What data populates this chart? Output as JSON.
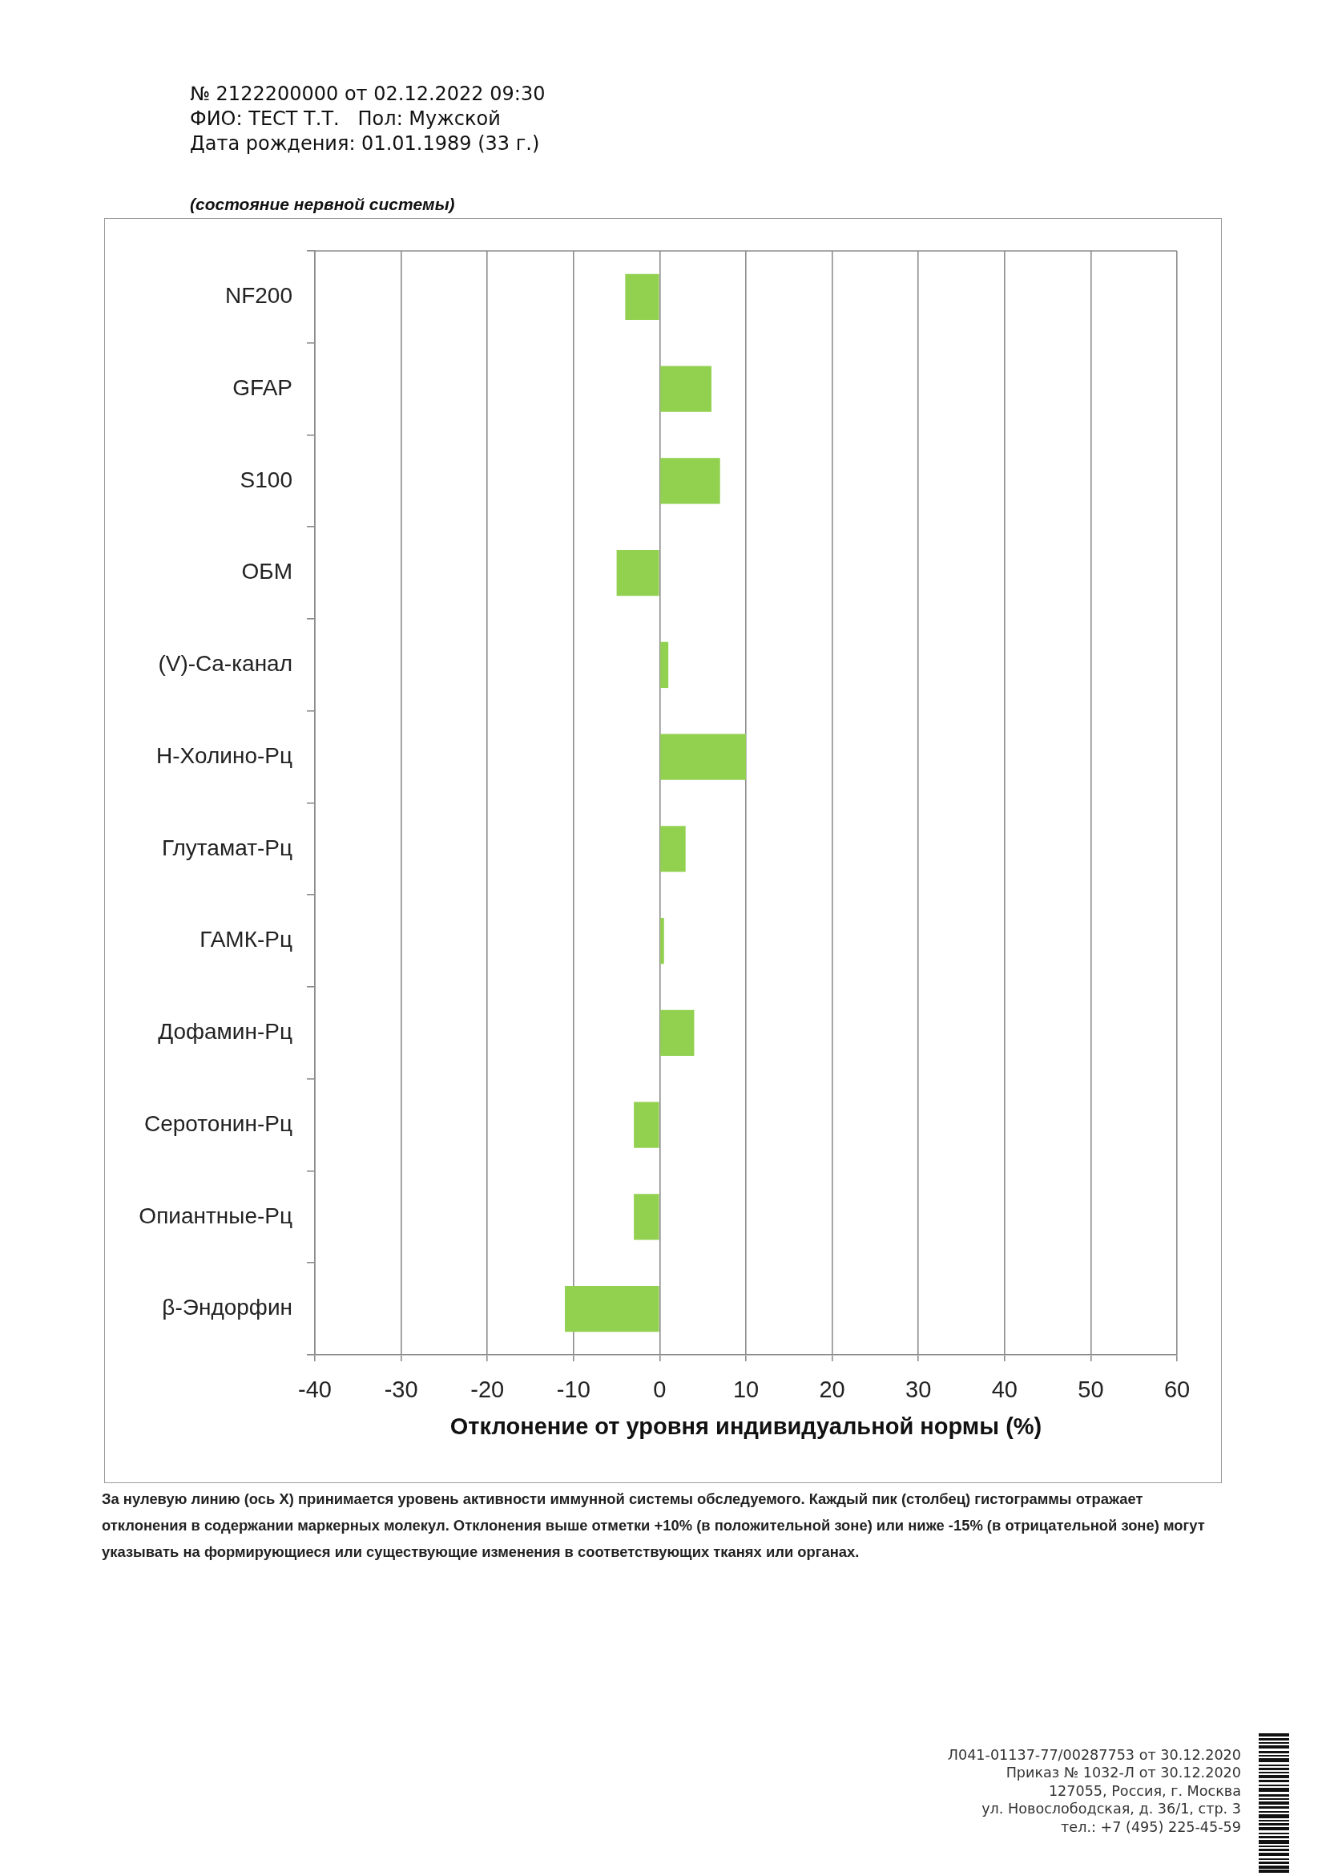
{
  "chart_data": {
    "type": "bar",
    "orientation": "horizontal",
    "title": "(состояние нервной системы)",
    "categories": [
      "NF200",
      "GFAP",
      "S100",
      "ОБМ",
      "(V)-Ca-канал",
      "Н-Холино-Рц",
      "Глутамат-Рц",
      "ГАМК-Рц",
      "Дофамин-Рц",
      "Серотонин-Рц",
      "Опиантные-Рц",
      "β-Эндорфин"
    ],
    "values": [
      -4,
      6,
      7,
      -5,
      1,
      10,
      3,
      0.5,
      4,
      -3,
      -3,
      -11
    ],
    "color": "#92d050",
    "xlim": [
      -40,
      60
    ],
    "xticks": [
      -40,
      -30,
      -20,
      -10,
      0,
      10,
      20,
      30,
      40,
      50,
      60
    ],
    "xlabel": "Отклонение от уровня индивидуальной нормы (%)",
    "grid": "x",
    "annotations": [
      "№ 2122200000 от 02.12.2022 09:30",
      "ФИО: ТЕСТ Т.Т.   Пол: Мужской",
      "Дата рождения: 01.01.1989 (33 г.)",
      "За нулевую линию (ось X) принимается уровень активности иммунной системы обследуемого. Каждый пик (столбец) гистограммы отражает отклонения в содержании маркерных молекул. Отклонения выше отметки +10% (в положительной зоне) или ниже -15% (в отрицательной зоне) могут указывать на формирующиеся или существующие изменения в соответствующих тканях или органах.",
      "Л041-01137-77/00287753 от 30.12.2020",
      "Приказ № 1032-Л от 30.12.2020",
      "127055, Россия, г. Москва",
      "ул. Новослободская, д. 36/1, стр. 3",
      "тел.: +7 (495) 225-45-59"
    ]
  }
}
